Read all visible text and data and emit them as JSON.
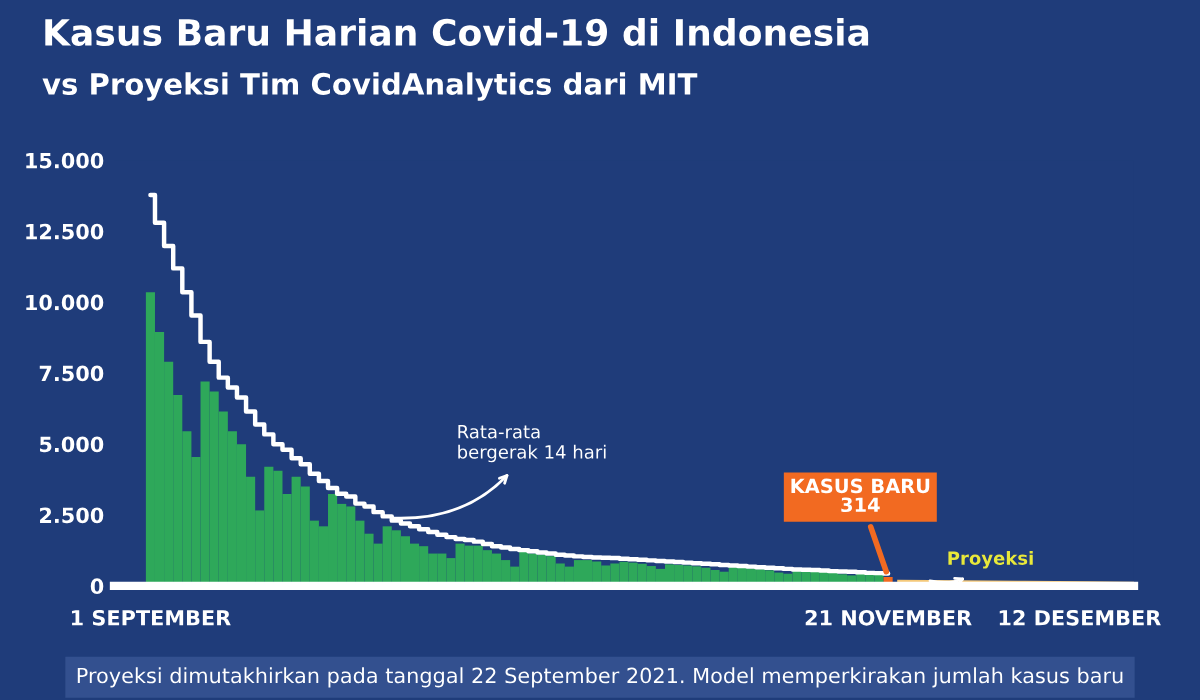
{
  "chart_data": {
    "type": "bar",
    "title": "Kasus Baru Harian Covid-19 di Indonesia",
    "subtitle": "vs Proyeksi Tim CovidAnalytics dari MIT",
    "x": [
      "2021-09-01",
      "2021-09-02",
      "2021-09-03",
      "2021-09-04",
      "2021-09-05",
      "2021-09-06",
      "2021-09-07",
      "2021-09-08",
      "2021-09-09",
      "2021-09-10",
      "2021-09-11",
      "2021-09-12",
      "2021-09-13",
      "2021-09-14",
      "2021-09-15",
      "2021-09-16",
      "2021-09-17",
      "2021-09-18",
      "2021-09-19",
      "2021-09-20",
      "2021-09-21",
      "2021-09-22",
      "2021-09-23",
      "2021-09-24",
      "2021-09-25",
      "2021-09-26",
      "2021-09-27",
      "2021-09-28",
      "2021-09-29",
      "2021-09-30",
      "2021-10-01",
      "2021-10-02",
      "2021-10-03",
      "2021-10-04",
      "2021-10-05",
      "2021-10-06",
      "2021-10-07",
      "2021-10-08",
      "2021-10-09",
      "2021-10-10",
      "2021-10-11",
      "2021-10-12",
      "2021-10-13",
      "2021-10-14",
      "2021-10-15",
      "2021-10-16",
      "2021-10-17",
      "2021-10-18",
      "2021-10-19",
      "2021-10-20",
      "2021-10-21",
      "2021-10-22",
      "2021-10-23",
      "2021-10-24",
      "2021-10-25",
      "2021-10-26",
      "2021-10-27",
      "2021-10-28",
      "2021-10-29",
      "2021-10-30",
      "2021-10-31",
      "2021-11-01",
      "2021-11-02",
      "2021-11-03",
      "2021-11-04",
      "2021-11-05",
      "2021-11-06",
      "2021-11-07",
      "2021-11-08",
      "2021-11-09",
      "2021-11-10",
      "2021-11-11",
      "2021-11-12",
      "2021-11-13",
      "2021-11-14",
      "2021-11-15",
      "2021-11-16",
      "2021-11-17",
      "2021-11-18",
      "2021-11-19",
      "2021-11-20",
      "2021-11-21"
    ],
    "series": [
      {
        "colors": [
          "#2ea85a",
          "#2ea85a",
          "#2ea85a",
          "#2ea85a",
          "#2ea85a",
          "#2ea85a",
          "#2ea85a",
          "#2ea85a",
          "#2ea85a",
          "#2ea85a",
          "#2ea85a",
          "#2ea85a",
          "#2ea85a",
          "#2ea85a",
          "#2ea85a",
          "#2ea85a",
          "#2ea85a",
          "#2ea85a",
          "#2ea85a",
          "#2ea85a",
          "#2ea85a",
          "#2ea85a",
          "#2ea85a",
          "#2ea85a",
          "#2ea85a",
          "#2ea85a",
          "#2ea85a",
          "#2ea85a",
          "#2ea85a",
          "#2ea85a",
          "#2ea85a",
          "#2ea85a",
          "#2ea85a",
          "#2ea85a",
          "#2ea85a",
          "#2ea85a",
          "#2ea85a",
          "#2ea85a",
          "#2ea85a",
          "#2ea85a",
          "#2ea85a",
          "#2ea85a",
          "#2ea85a",
          "#2ea85a",
          "#2ea85a",
          "#2ea85a",
          "#2ea85a",
          "#2ea85a",
          "#2ea85a",
          "#2ea85a",
          "#2ea85a",
          "#2ea85a",
          "#2ea85a",
          "#2ea85a",
          "#2ea85a",
          "#2ea85a",
          "#2ea85a",
          "#2ea85a",
          "#2ea85a",
          "#2ea85a",
          "#2ea85a",
          "#2ea85a",
          "#2ea85a",
          "#2ea85a",
          "#2ea85a",
          "#2ea85a",
          "#2ea85a",
          "#2ea85a",
          "#2ea85a",
          "#2ea85a",
          "#2ea85a",
          "#2ea85a",
          "#2ea85a",
          "#2ea85a",
          "#2ea85a",
          "#2ea85a",
          "#2ea85a",
          "#2ea85a",
          "#2ea85a",
          "#2ea85a",
          "#2ea85a",
          "#f26a21"
        ],
        "values": [
          10350,
          8950,
          7900,
          6730,
          5450,
          4540,
          7200,
          6850,
          6150,
          5450,
          4990,
          3850,
          2660,
          4200,
          4060,
          3240,
          3850,
          3500,
          2300,
          2100,
          3240,
          2890,
          2800,
          2300,
          1840,
          1490,
          2100,
          1960,
          1750,
          1490,
          1400,
          1140,
          1140,
          980,
          1490,
          1420,
          1420,
          1260,
          1140,
          910,
          680,
          1260,
          1140,
          1100,
          1050,
          790,
          680,
          910,
          910,
          860,
          720,
          790,
          850,
          820,
          780,
          700,
          600,
          760,
          740,
          720,
          690,
          640,
          560,
          500,
          660,
          640,
          620,
          590,
          550,
          470,
          430,
          560,
          540,
          520,
          500,
          470,
          410,
          370,
          460,
          440,
          420,
          314
        ]
      },
      {
        "type": "step",
        "color": "#ffffff",
        "values": [
          13780,
          12800,
          11980,
          11190,
          10350,
          9530,
          8600,
          7900,
          7340,
          6990,
          6640,
          6150,
          5690,
          5340,
          4990,
          4800,
          4500,
          4290,
          3950,
          3700,
          3450,
          3250,
          3150,
          2900,
          2800,
          2600,
          2450,
          2300,
          2200,
          2100,
          2000,
          1900,
          1800,
          1720,
          1650,
          1620,
          1560,
          1480,
          1400,
          1350,
          1300,
          1260,
          1220,
          1180,
          1140,
          1100,
          1070,
          1040,
          1020,
          1000,
          990,
          980,
          960,
          940,
          920,
          900,
          880,
          860,
          840,
          820,
          800,
          780,
          760,
          740,
          720,
          700,
          680,
          660,
          640,
          620,
          600,
          580,
          570,
          560,
          540,
          520,
          510,
          500,
          480,
          460,
          450,
          440
        ]
      },
      {
        "type": "area",
        "color": "#f5c97a",
        "x": [
          "2021-11-22",
          "2021-11-29",
          "2021-12-06",
          "2021-12-13",
          "2021-12-18"
        ],
        "values": [
          220,
          200,
          180,
          160,
          150
        ]
      }
    ],
    "xlim": [
      "2021-08-28",
      "2021-12-18"
    ],
    "xticks": [
      {
        "value": "2021-09-01",
        "label": "1 SEPTEMBER"
      },
      {
        "value": "2021-11-21",
        "label": "21 NOVEMBER"
      },
      {
        "value": "2021-12-12",
        "label": "12 DESEMBER"
      }
    ],
    "ylim": [
      0,
      15000
    ],
    "yticks": [
      {
        "value": 0,
        "label": "0"
      },
      {
        "value": 2500,
        "label": "2.500"
      },
      {
        "value": 5000,
        "label": "5.000"
      },
      {
        "value": 7500,
        "label": "7.500"
      },
      {
        "value": 10000,
        "label": "10.000"
      },
      {
        "value": 12500,
        "label": "12.500"
      },
      {
        "value": 15000,
        "label": "15.000"
      }
    ],
    "grid": false,
    "legend": false,
    "annotations": [
      {
        "text": "Rata-rata\nbergerak 14 hari",
        "x": "2021-09-27",
        "y": 2400
      },
      {
        "text": "KASUS BARU\n314",
        "x": "2021-11-21",
        "y": 314
      },
      {
        "text": "Proyeksi",
        "x": "2021-11-25",
        "y": 220
      },
      "Proyeksi dimutakhirkan pada tanggal 22 September 2021. Model memperkirakan jumlah kasus baru"
    ]
  }
}
